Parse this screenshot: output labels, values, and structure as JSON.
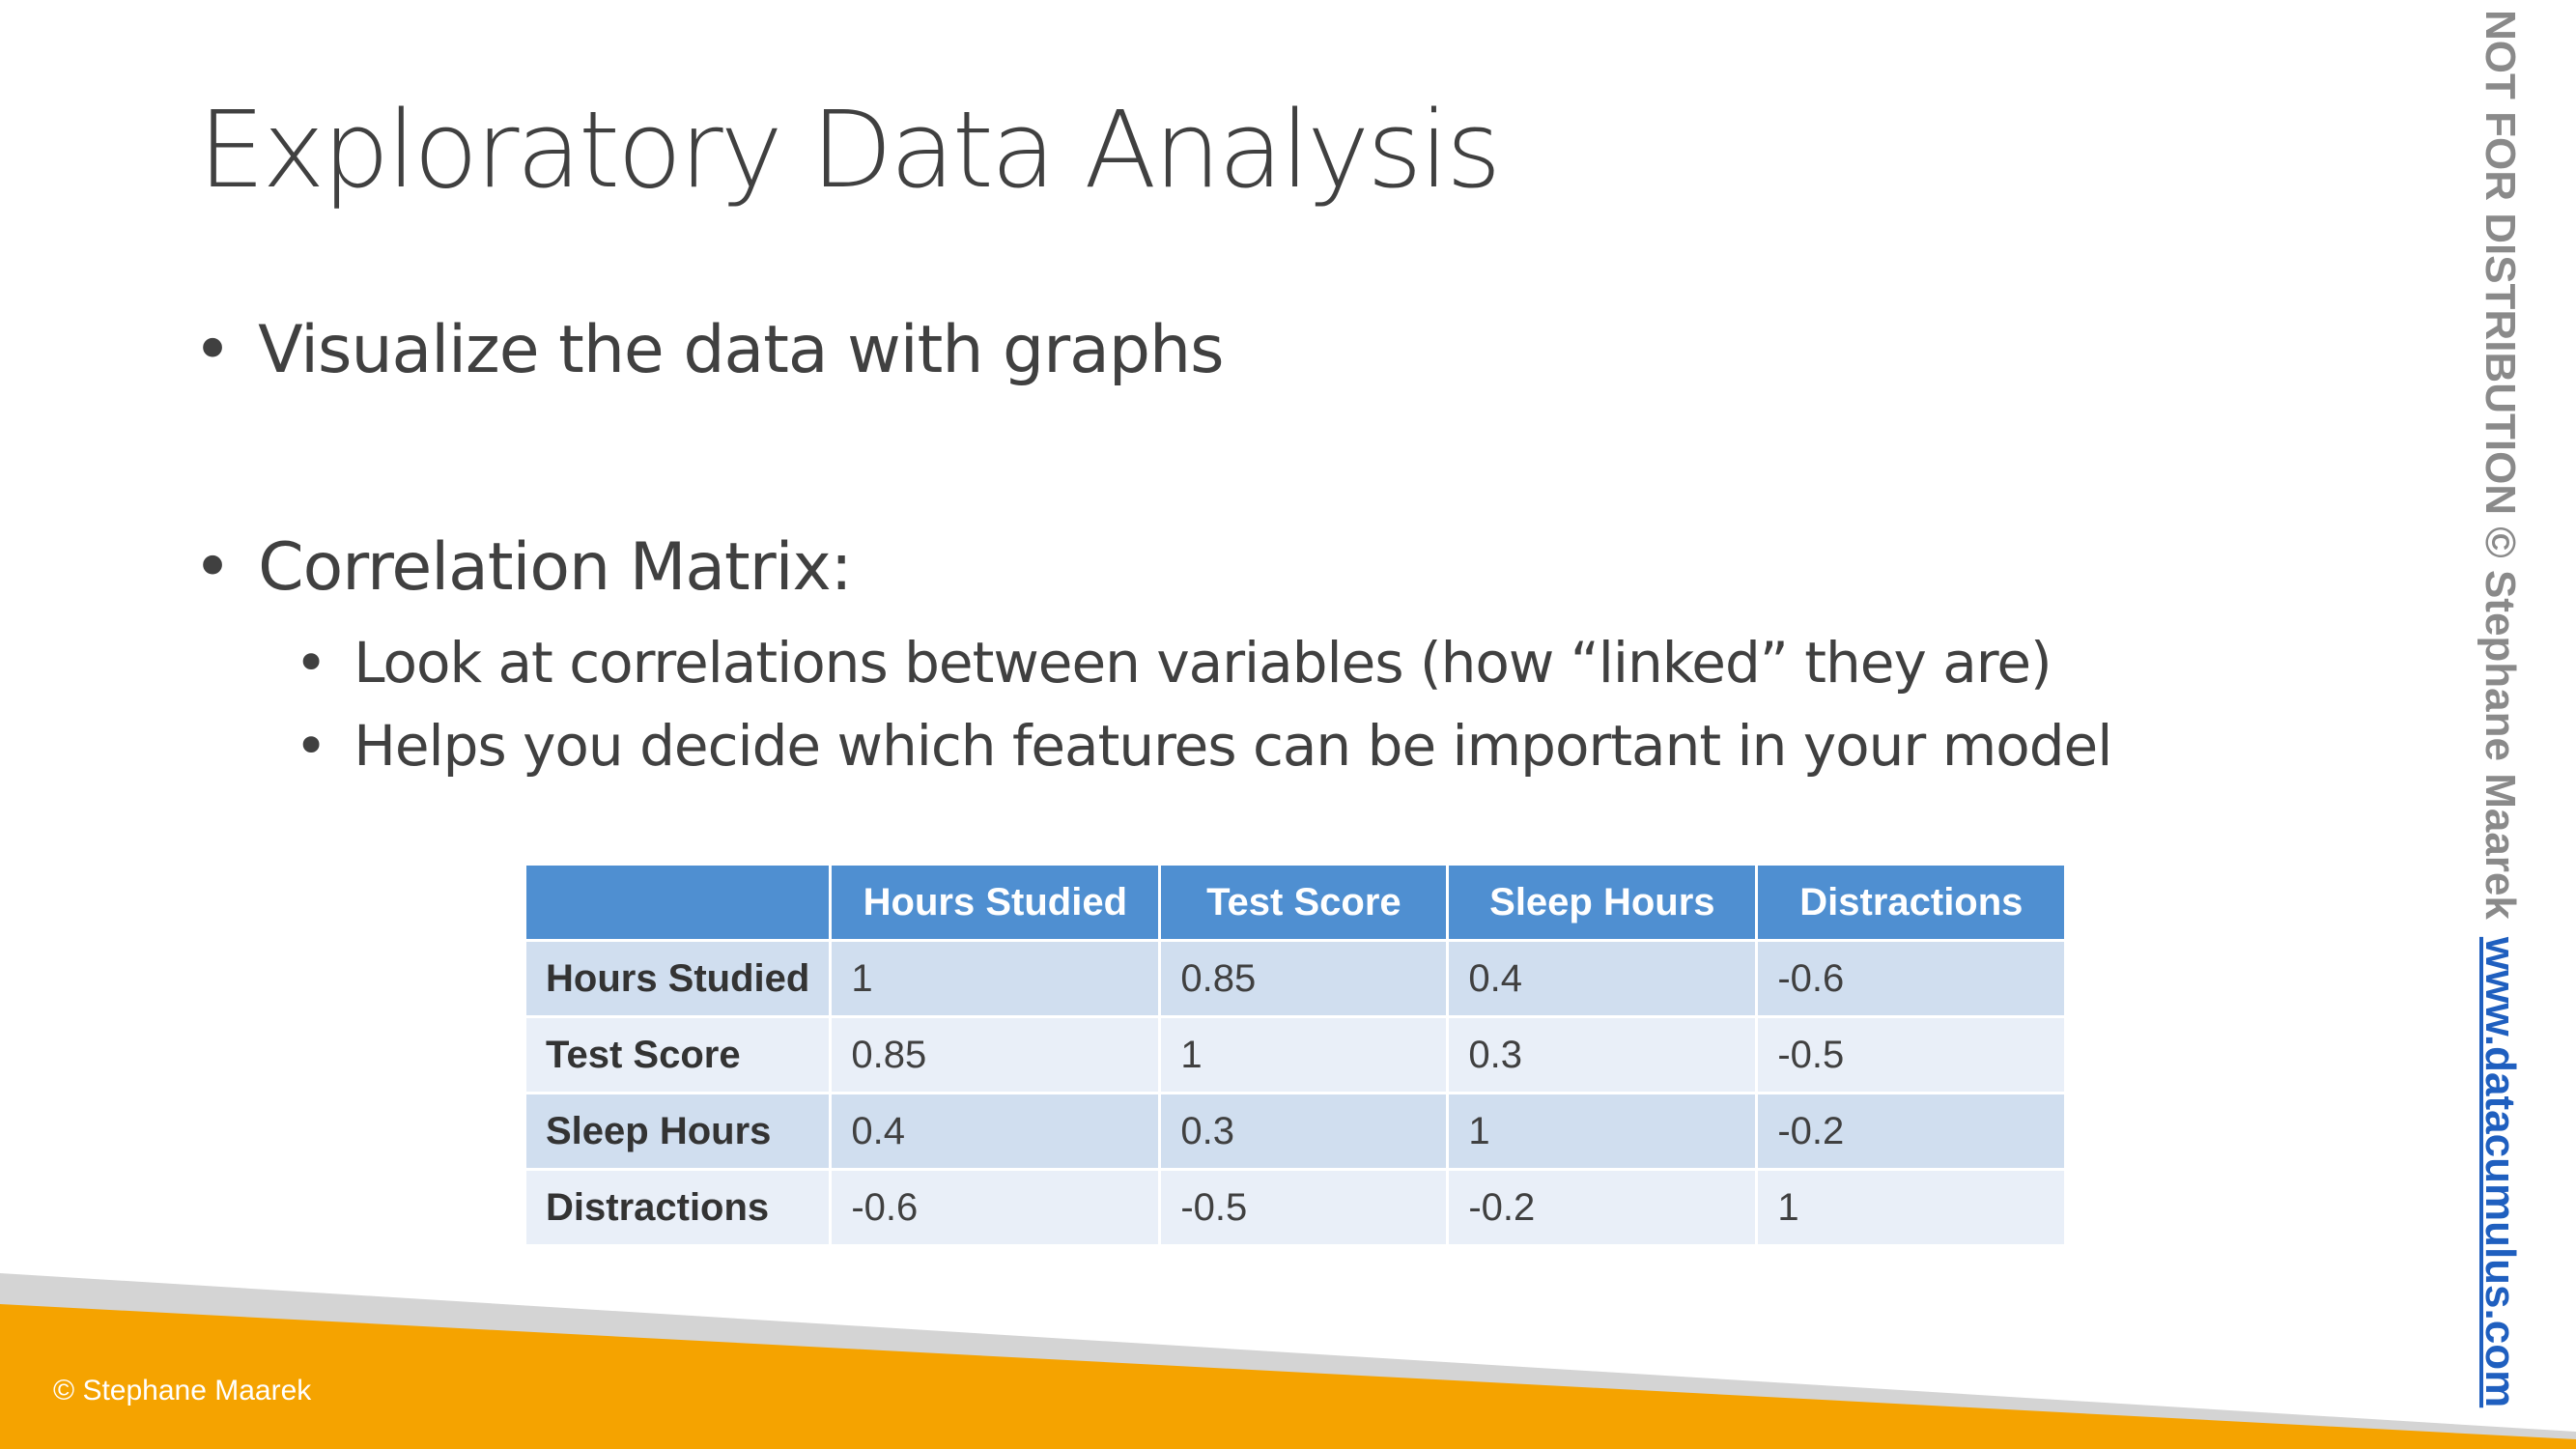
{
  "slide": {
    "title": "Exploratory Data Analysis",
    "bullets": [
      {
        "text": "Visualize the data with graphs"
      },
      {
        "text": "Correlation Matrix:"
      }
    ],
    "sub_bullets": [
      {
        "text": "Look at correlations between variables (how “linked” they are)"
      },
      {
        "text": "Helps you decide which features can be important in your model"
      }
    ],
    "bullet_char": "•"
  },
  "matrix": {
    "headers": [
      "",
      "Hours Studied",
      "Test Score",
      "Sleep Hours",
      "Distractions"
    ],
    "rows": [
      {
        "label": "Hours Studied",
        "values": [
          "1",
          "0.85",
          "0.4",
          "-0.6"
        ]
      },
      {
        "label": "Test Score",
        "values": [
          "0.85",
          "1",
          "0.3",
          "-0.5"
        ]
      },
      {
        "label": "Sleep Hours",
        "values": [
          "0.4",
          "0.3",
          "1",
          "-0.2"
        ]
      },
      {
        "label": "Distractions",
        "values": [
          "-0.6",
          "-0.5",
          "-0.2",
          "1"
        ]
      }
    ]
  },
  "footer": {
    "copyright": "© Stephane Maarek"
  },
  "sidebar": {
    "notice": "NOT FOR DISTRIBUTION © Stephane Maarek",
    "link": "www.datacumulus.com"
  },
  "colors": {
    "header_blue": "#4f8fd1",
    "row_dark": "#d0deef",
    "row_light": "#e9eff8",
    "footer_orange": "#f5a300",
    "footer_gray": "#d4d4d4",
    "link_blue": "#1f5fbf"
  }
}
